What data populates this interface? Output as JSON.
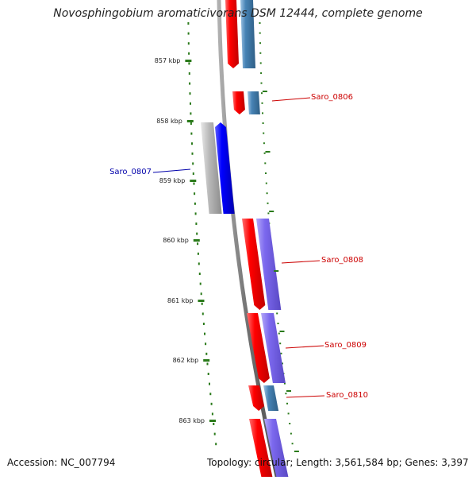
{
  "title": "Novosphingobium aromaticivorans DSM 12444, complete genome",
  "footer": {
    "accession": "Accession: NC_007794",
    "summary": "Topology: circular; Length: 3,561,584 bp; Genes: 3,397"
  },
  "ticks": [
    "857 kbp",
    "858 kbp",
    "859 kbp",
    "860 kbp",
    "861 kbp",
    "862 kbp",
    "863 kbp"
  ],
  "gene_labels": [
    {
      "name": "Saro_0806",
      "strand": "forward",
      "color": "#cc0000"
    },
    {
      "name": "Saro_0807",
      "strand": "reverse",
      "color": "#0000aa"
    },
    {
      "name": "Saro_0808",
      "strand": "forward",
      "color": "#cc0000"
    },
    {
      "name": "Saro_0809",
      "strand": "forward",
      "color": "#cc0000"
    },
    {
      "name": "Saro_0810",
      "strand": "forward",
      "color": "#cc0000"
    }
  ],
  "colors": {
    "gene_forward": "#ff0000",
    "gene_reverse": "#0000ff",
    "cds_blue": "#4682b4",
    "cds_purple": "#7b68ee",
    "cds_gray": "#b0b0b0",
    "tick_green": "#2a7a1a",
    "backbone": "#808080"
  }
}
